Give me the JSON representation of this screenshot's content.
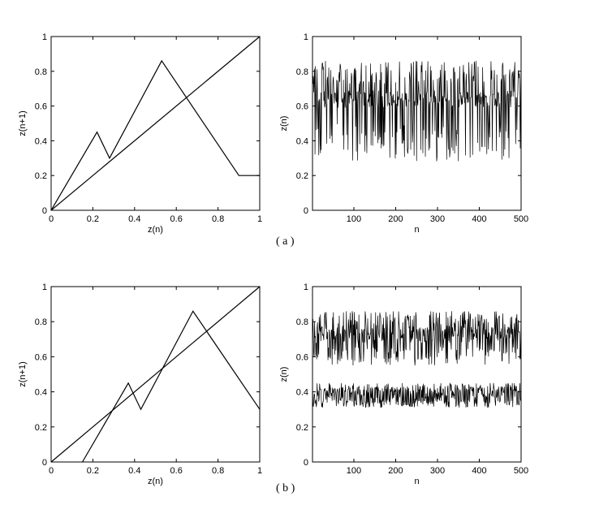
{
  "captions": [
    "( a )",
    "( b )"
  ],
  "chart_data": [
    {
      "panel": "a-left",
      "type": "line",
      "xlabel": "z(n)",
      "ylabel": "z(n+1)",
      "xlim": [
        0,
        1
      ],
      "ylim": [
        0,
        1
      ],
      "xticks": [
        "0",
        "0.2",
        "0.4",
        "0.6",
        "0.8",
        "1"
      ],
      "yticks": [
        "0",
        "0.2",
        "0.4",
        "0.6",
        "0.8",
        "1"
      ],
      "series": [
        {
          "x": [
            0,
            1
          ],
          "y": [
            0,
            1
          ]
        },
        {
          "x": [
            0,
            0.22,
            0.28,
            0.53,
            0.9,
            1
          ],
          "y": [
            0,
            0.45,
            0.3,
            0.86,
            0.2,
            0.2
          ]
        }
      ]
    },
    {
      "panel": "a-right",
      "type": "line",
      "xlabel": "n",
      "ylabel": "z(n)",
      "xlim": [
        1,
        500
      ],
      "ylim": [
        0,
        1
      ],
      "xticks": [
        "100",
        "200",
        "300",
        "400",
        "500"
      ],
      "yticks": [
        "0",
        "0.2",
        "0.4",
        "0.6",
        "0.8",
        "1"
      ],
      "series": [
        {
          "n_points": 500,
          "y_range": [
            0.28,
            0.86
          ],
          "y_center": 0.64
        }
      ]
    },
    {
      "panel": "b-left",
      "type": "line",
      "xlabel": "z(n)",
      "ylabel": "z(n+1)",
      "xlim": [
        0,
        1
      ],
      "ylim": [
        0,
        1
      ],
      "xticks": [
        "0",
        "0.2",
        "0.4",
        "0.6",
        "0.8",
        "1"
      ],
      "yticks": [
        "0",
        "0.2",
        "0.4",
        "0.6",
        "0.8",
        "1"
      ],
      "series": [
        {
          "x": [
            0,
            1
          ],
          "y": [
            0,
            1
          ]
        },
        {
          "x": [
            0.15,
            0.37,
            0.43,
            0.68,
            1
          ],
          "y": [
            0,
            0.45,
            0.3,
            0.86,
            0.3
          ]
        }
      ]
    },
    {
      "panel": "b-right",
      "type": "line",
      "xlabel": "n",
      "ylabel": "z(n)",
      "xlim": [
        1,
        500
      ],
      "ylim": [
        0,
        1
      ],
      "xticks": [
        "100",
        "200",
        "300",
        "400",
        "500"
      ],
      "yticks": [
        "0",
        "0.2",
        "0.4",
        "0.6",
        "0.8",
        "1"
      ],
      "series": [
        {
          "n_points": 500,
          "band": "upper",
          "y_range": [
            0.55,
            0.86
          ],
          "y_center": 0.73
        },
        {
          "n_points": 500,
          "band": "lower",
          "y_range": [
            0.31,
            0.45
          ],
          "y_center": 0.38
        }
      ]
    }
  ]
}
